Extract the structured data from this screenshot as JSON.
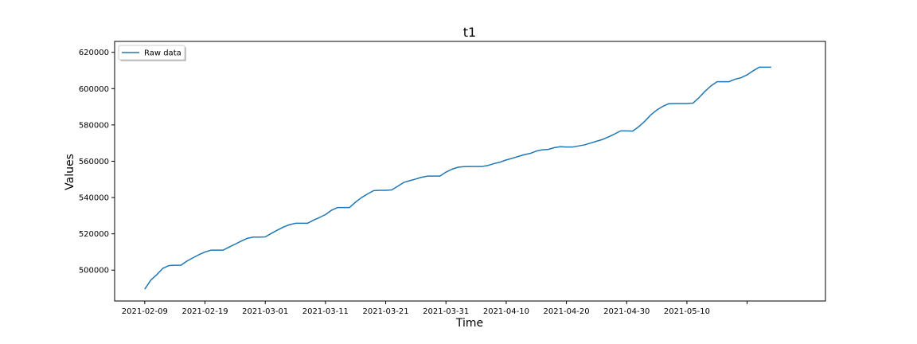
{
  "chart_data": {
    "type": "line",
    "title": "t1",
    "xlabel": "Time",
    "ylabel": "Values",
    "x_tick_labels": [
      "2021-02-09",
      "2021-02-19",
      "2021-03-01",
      "2021-03-11",
      "2021-03-21",
      "2021-03-31",
      "2021-04-10",
      "2021-04-20",
      "2021-04-30",
      "2021-05-10",
      ""
    ],
    "y_tick_values": [
      500000,
      520000,
      540000,
      560000,
      580000,
      600000,
      620000
    ],
    "y_tick_labels": [
      "500000",
      "520000",
      "540000",
      "560000",
      "580000",
      "600000",
      "620000"
    ],
    "xlim": [
      "2021-02-04",
      "2021-06-02"
    ],
    "ylim": [
      483000,
      626000
    ],
    "grid": false,
    "legend": {
      "placement": "top-left",
      "entries": [
        "Raw data"
      ]
    },
    "series": [
      {
        "name": "Raw data",
        "color": "#1f77b4",
        "x": [
          "2021-02-09",
          "2021-02-10",
          "2021-02-11",
          "2021-02-12",
          "2021-02-13",
          "2021-02-14",
          "2021-02-15",
          "2021-02-16",
          "2021-02-17",
          "2021-02-18",
          "2021-02-19",
          "2021-02-20",
          "2021-02-21",
          "2021-02-22",
          "2021-02-23",
          "2021-02-24",
          "2021-02-25",
          "2021-02-26",
          "2021-02-27",
          "2021-02-28",
          "2021-03-01",
          "2021-03-02",
          "2021-03-03",
          "2021-03-04",
          "2021-03-05",
          "2021-03-06",
          "2021-03-07",
          "2021-03-08",
          "2021-03-09",
          "2021-03-10",
          "2021-03-11",
          "2021-03-12",
          "2021-03-13",
          "2021-03-14",
          "2021-03-15",
          "2021-03-16",
          "2021-03-17",
          "2021-03-18",
          "2021-03-19",
          "2021-03-20",
          "2021-03-21",
          "2021-03-22",
          "2021-03-23",
          "2021-03-24",
          "2021-03-25",
          "2021-03-26",
          "2021-03-27",
          "2021-03-28",
          "2021-03-29",
          "2021-03-30",
          "2021-03-31",
          "2021-04-01",
          "2021-04-02",
          "2021-04-03",
          "2021-04-04",
          "2021-04-05",
          "2021-04-06",
          "2021-04-07",
          "2021-04-08",
          "2021-04-09",
          "2021-04-10",
          "2021-04-11",
          "2021-04-12",
          "2021-04-13",
          "2021-04-14",
          "2021-04-15",
          "2021-04-16",
          "2021-04-17",
          "2021-04-18",
          "2021-04-19",
          "2021-04-20",
          "2021-04-21",
          "2021-04-22",
          "2021-04-23",
          "2021-04-24",
          "2021-04-25",
          "2021-04-26",
          "2021-04-27",
          "2021-04-28",
          "2021-04-29",
          "2021-04-30",
          "2021-05-01",
          "2021-05-02",
          "2021-05-03",
          "2021-05-04",
          "2021-05-05",
          "2021-05-06",
          "2021-05-07",
          "2021-05-08",
          "2021-05-09",
          "2021-05-10",
          "2021-05-11",
          "2021-05-12",
          "2021-05-13",
          "2021-05-14",
          "2021-05-15",
          "2021-05-16",
          "2021-05-17",
          "2021-05-18",
          "2021-05-19",
          "2021-05-20",
          "2021-05-21",
          "2021-05-22",
          "2021-05-23",
          "2021-05-24"
        ],
        "values": [
          489500,
          494500,
          497500,
          501000,
          502500,
          502700,
          502700,
          505000,
          506800,
          508500,
          510000,
          511000,
          511000,
          511000,
          512700,
          514300,
          516000,
          517500,
          518200,
          518200,
          518300,
          520200,
          522000,
          523700,
          525000,
          525800,
          525800,
          525800,
          527500,
          529000,
          530600,
          533000,
          534500,
          534500,
          534500,
          537500,
          540000,
          542000,
          543800,
          544000,
          544000,
          544200,
          546200,
          548300,
          549300,
          550200,
          551200,
          551800,
          551800,
          551800,
          554000,
          555600,
          556700,
          557000,
          557100,
          557100,
          557100,
          557700,
          558700,
          559500,
          560700,
          561600,
          562600,
          563600,
          564300,
          565600,
          566300,
          566500,
          567500,
          568000,
          567800,
          567800,
          568400,
          569000,
          570000,
          571000,
          572000,
          573400,
          575000,
          576700,
          576700,
          576600,
          579000,
          582000,
          585500,
          588200,
          590200,
          591700,
          591800,
          591800,
          591800,
          592000,
          595000,
          598500,
          601500,
          603800,
          603800,
          603800,
          605200,
          606000,
          607600,
          609800,
          611800,
          611800,
          611800
        ]
      }
    ]
  }
}
